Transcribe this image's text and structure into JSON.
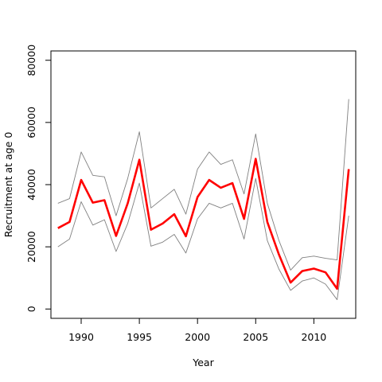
{
  "chart_data": {
    "type": "line",
    "title": "",
    "xlabel": "Year",
    "ylabel": "Recruitment at age 0",
    "xlim": [
      1987.4,
      2013.6
    ],
    "ylim": [
      -3000,
      83000
    ],
    "x_ticks": [
      1990,
      1995,
      2000,
      2005,
      2010
    ],
    "y_ticks": [
      0,
      20000,
      40000,
      60000,
      80000
    ],
    "grid": false,
    "legend": "none",
    "x": [
      1988,
      1989,
      1990,
      1991,
      1992,
      1993,
      1994,
      1995,
      1996,
      1997,
      1998,
      1999,
      2000,
      2001,
      2002,
      2003,
      2004,
      2005,
      2006,
      2007,
      2008,
      2009,
      2010,
      2011,
      2012,
      2013
    ],
    "series": [
      {
        "color": "#ff0000",
        "role": "estimate",
        "values": [
          26000,
          28000,
          41500,
          34200,
          35000,
          23500,
          34000,
          48000,
          25500,
          27500,
          30500,
          23400,
          36000,
          41500,
          39000,
          40500,
          29000,
          48300,
          28000,
          17500,
          8500,
          12200,
          13000,
          11800,
          6500,
          45000
        ]
      },
      {
        "color": "#808080",
        "role": "upper",
        "values": [
          34000,
          35500,
          50500,
          43000,
          42500,
          30000,
          42000,
          57000,
          32500,
          35500,
          38500,
          30500,
          45000,
          50500,
          46500,
          48000,
          37000,
          56300,
          34000,
          22000,
          12500,
          16500,
          17000,
          16300,
          15800,
          67500
        ]
      },
      {
        "color": "#808080",
        "role": "lower",
        "values": [
          20000,
          22500,
          34500,
          27000,
          28700,
          18500,
          27500,
          40500,
          20200,
          21500,
          24000,
          18000,
          29000,
          34000,
          32500,
          34000,
          22500,
          42000,
          22000,
          12800,
          6000,
          9000,
          10000,
          8000,
          3000,
          30000
        ]
      }
    ]
  }
}
